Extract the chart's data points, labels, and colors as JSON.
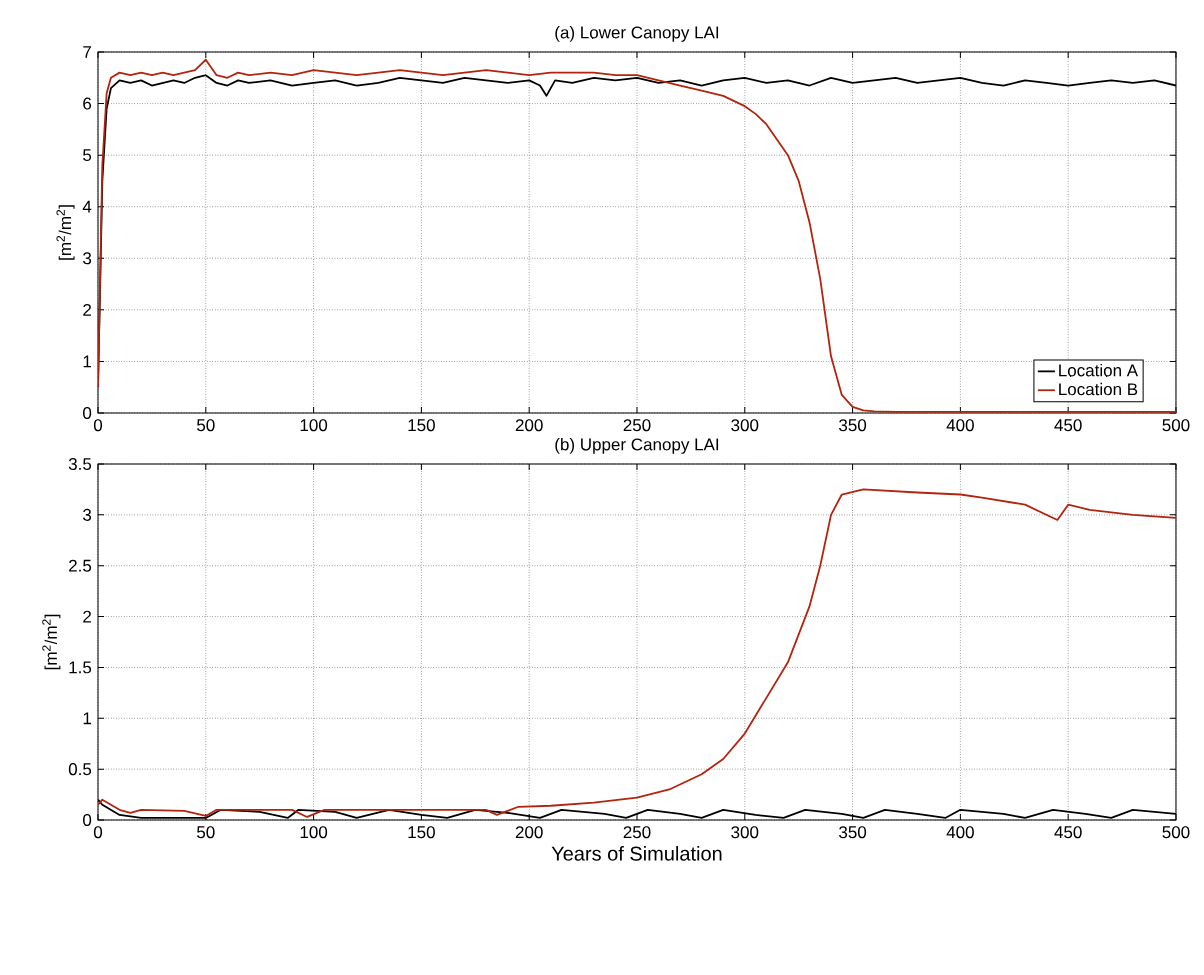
{
  "chart_data": [
    {
      "type": "line",
      "title": "(a) Lower Canopy LAI",
      "ylabel": "[m$^{2}$/m$^{2}$]",
      "xlim": [
        0,
        500
      ],
      "ylim": [
        0,
        7
      ],
      "xticks": [
        0,
        50,
        100,
        150,
        200,
        250,
        300,
        350,
        400,
        450,
        500
      ],
      "yticks": [
        0,
        1,
        2,
        3,
        4,
        5,
        6,
        7
      ],
      "grid": true,
      "legend": "bottom right",
      "line_style": "solid",
      "series": [
        {
          "name": "Location A",
          "color": "#000000",
          "x": [
            0,
            2,
            4,
            6,
            10,
            15,
            20,
            25,
            30,
            35,
            40,
            45,
            50,
            55,
            60,
            65,
            70,
            80,
            90,
            100,
            110,
            120,
            130,
            140,
            150,
            160,
            170,
            180,
            190,
            200,
            205,
            208,
            212,
            220,
            230,
            240,
            250,
            260,
            270,
            280,
            290,
            300,
            310,
            320,
            330,
            340,
            350,
            360,
            370,
            380,
            390,
            400,
            410,
            420,
            430,
            440,
            450,
            460,
            470,
            480,
            490,
            500
          ],
          "values": [
            0.5,
            4.5,
            5.9,
            6.3,
            6.45,
            6.4,
            6.45,
            6.35,
            6.4,
            6.45,
            6.4,
            6.5,
            6.55,
            6.4,
            6.35,
            6.45,
            6.4,
            6.45,
            6.35,
            6.4,
            6.45,
            6.35,
            6.4,
            6.5,
            6.45,
            6.4,
            6.5,
            6.45,
            6.4,
            6.45,
            6.35,
            6.15,
            6.45,
            6.4,
            6.5,
            6.45,
            6.5,
            6.4,
            6.45,
            6.35,
            6.45,
            6.5,
            6.4,
            6.45,
            6.35,
            6.5,
            6.4,
            6.45,
            6.5,
            6.4,
            6.45,
            6.5,
            6.4,
            6.35,
            6.45,
            6.4,
            6.35,
            6.4,
            6.45,
            6.4,
            6.45,
            6.35
          ]
        },
        {
          "name": "Location B",
          "color": "#b3240f",
          "x": [
            0,
            2,
            4,
            6,
            10,
            15,
            20,
            25,
            30,
            35,
            40,
            45,
            50,
            55,
            60,
            65,
            70,
            80,
            90,
            100,
            110,
            120,
            130,
            140,
            150,
            160,
            170,
            180,
            190,
            200,
            210,
            220,
            230,
            240,
            250,
            260,
            270,
            280,
            290,
            300,
            305,
            310,
            315,
            320,
            325,
            330,
            335,
            340,
            345,
            350,
            355,
            360,
            370,
            380,
            400,
            450,
            500
          ],
          "values": [
            0.5,
            4.8,
            6.2,
            6.5,
            6.6,
            6.55,
            6.6,
            6.55,
            6.6,
            6.55,
            6.6,
            6.65,
            6.85,
            6.55,
            6.5,
            6.6,
            6.55,
            6.6,
            6.55,
            6.65,
            6.6,
            6.55,
            6.6,
            6.65,
            6.6,
            6.55,
            6.6,
            6.65,
            6.6,
            6.55,
            6.6,
            6.6,
            6.6,
            6.55,
            6.55,
            6.45,
            6.35,
            6.25,
            6.15,
            5.95,
            5.8,
            5.6,
            5.3,
            5.0,
            4.5,
            3.7,
            2.6,
            1.1,
            0.35,
            0.12,
            0.05,
            0.03,
            0.02,
            0.02,
            0.02,
            0.02,
            0.02
          ]
        }
      ]
    },
    {
      "type": "line",
      "title": "(b) Upper Canopy LAI",
      "xlabel": "Years of Simulation",
      "ylabel": "[m$^{2}$/m$^{2}$]",
      "xlim": [
        0,
        500
      ],
      "ylim": [
        0,
        3.5
      ],
      "xticks": [
        0,
        50,
        100,
        150,
        200,
        250,
        300,
        350,
        400,
        450,
        500
      ],
      "yticks": [
        0,
        0.5,
        1,
        1.5,
        2,
        2.5,
        3,
        3.5
      ],
      "grid": true,
      "line_style": "solid",
      "series": [
        {
          "color": "#000000",
          "x": [
            0,
            2,
            10,
            20,
            45,
            50,
            57,
            75,
            88,
            93,
            110,
            120,
            135,
            150,
            162,
            175,
            190,
            205,
            215,
            235,
            245,
            255,
            270,
            280,
            290,
            305,
            318,
            328,
            345,
            355,
            365,
            380,
            393,
            400,
            420,
            430,
            443,
            458,
            470,
            480,
            500
          ],
          "values": [
            0.2,
            0.15,
            0.05,
            0.02,
            0.02,
            0.02,
            0.1,
            0.08,
            0.02,
            0.1,
            0.08,
            0.02,
            0.1,
            0.05,
            0.02,
            0.1,
            0.07,
            0.02,
            0.1,
            0.06,
            0.02,
            0.1,
            0.06,
            0.02,
            0.1,
            0.05,
            0.02,
            0.1,
            0.06,
            0.02,
            0.1,
            0.06,
            0.02,
            0.1,
            0.06,
            0.02,
            0.1,
            0.06,
            0.02,
            0.1,
            0.06
          ]
        },
        {
          "color": "#b3240f",
          "x": [
            0,
            2,
            10,
            15,
            20,
            40,
            50,
            55,
            90,
            97,
            105,
            180,
            185,
            195,
            210,
            230,
            250,
            265,
            280,
            290,
            300,
            310,
            320,
            330,
            335,
            340,
            345,
            355,
            380,
            400,
            410,
            430,
            445,
            450,
            460,
            480,
            500
          ],
          "values": [
            0.15,
            0.2,
            0.1,
            0.07,
            0.1,
            0.09,
            0.04,
            0.1,
            0.1,
            0.03,
            0.1,
            0.1,
            0.05,
            0.13,
            0.14,
            0.17,
            0.22,
            0.3,
            0.45,
            0.6,
            0.85,
            1.2,
            1.55,
            2.1,
            2.5,
            3.0,
            3.2,
            3.25,
            3.22,
            3.2,
            3.17,
            3.1,
            2.95,
            3.1,
            3.05,
            3.0,
            2.97
          ]
        }
      ]
    }
  ]
}
